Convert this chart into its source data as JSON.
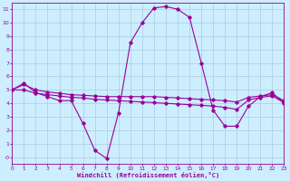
{
  "xlabel": "Windchill (Refroidissement éolien,°C)",
  "background_color": "#cceeff",
  "grid_color": "#aaccdd",
  "line_color": "#990099",
  "xlim": [
    0,
    23
  ],
  "ylim": [
    -0.5,
    11.5
  ],
  "yticks": [
    0,
    1,
    2,
    3,
    4,
    5,
    6,
    7,
    8,
    9,
    10,
    11
  ],
  "ytick_labels": [
    "-0",
    "1",
    "2",
    "3",
    "4",
    "5",
    "6",
    "7",
    "8",
    "9",
    "10",
    "11"
  ],
  "x": [
    0,
    1,
    2,
    3,
    4,
    5,
    6,
    7,
    8,
    9,
    10,
    11,
    12,
    13,
    14,
    15,
    16,
    17,
    18,
    19,
    20,
    21,
    22,
    23
  ],
  "y_main": [
    5.0,
    5.5,
    4.8,
    4.5,
    4.2,
    4.2,
    2.5,
    0.5,
    -0.1,
    3.3,
    8.5,
    10.0,
    11.1,
    11.2,
    11.0,
    10.4,
    7.0,
    3.5,
    2.3,
    2.3,
    3.8,
    4.5,
    4.8,
    4.0
  ],
  "y_upper": [
    5.0,
    5.4,
    5.0,
    4.85,
    4.75,
    4.65,
    4.6,
    4.55,
    4.5,
    4.5,
    4.5,
    4.5,
    4.5,
    4.45,
    4.4,
    4.35,
    4.3,
    4.25,
    4.2,
    4.1,
    4.45,
    4.55,
    4.65,
    4.2
  ],
  "y_lower": [
    5.0,
    5.0,
    4.75,
    4.65,
    4.55,
    4.45,
    4.4,
    4.3,
    4.25,
    4.2,
    4.15,
    4.1,
    4.05,
    4.0,
    3.95,
    3.9,
    3.85,
    3.8,
    3.7,
    3.55,
    4.25,
    4.45,
    4.55,
    4.05
  ]
}
